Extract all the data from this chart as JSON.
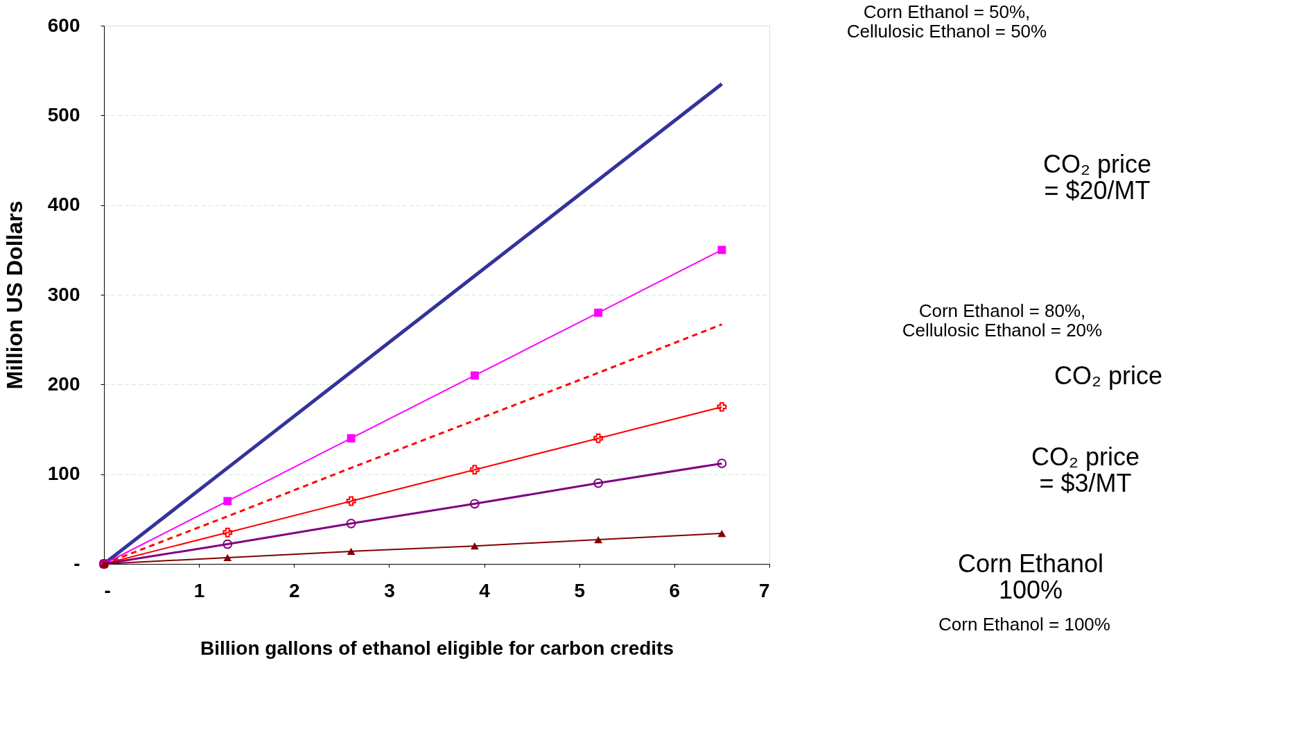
{
  "chart_data": {
    "type": "line",
    "xlabel": "Billion gallons of ethanol eligible for carbon credits",
    "ylabel": "Million US Dollars",
    "x": [
      0,
      1.3,
      2.6,
      3.9,
      5.2,
      6.5
    ],
    "xlim": [
      0,
      7
    ],
    "xticks": [
      {
        "value": 0,
        "label": "-"
      },
      1,
      2,
      3,
      4,
      5,
      6,
      7
    ],
    "ylim": [
      0,
      600
    ],
    "yticks": [
      {
        "value": 0,
        "label": "-"
      },
      100,
      200,
      300,
      400,
      500,
      600
    ],
    "grid": "y",
    "series": [
      {
        "color": "#333399",
        "values": [
          0,
          107,
          214,
          321,
          428,
          535
        ],
        "marker": "none",
        "line_style": "solid"
      },
      {
        "color": "#ff00ff",
        "values": [
          0,
          70,
          140,
          210,
          280,
          350
        ],
        "marker": "square",
        "line_style": "solid"
      },
      {
        "color": "#ff0000",
        "values": [
          0,
          53,
          107,
          160,
          213,
          267
        ],
        "marker": "none",
        "line_style": "dashed"
      },
      {
        "color": "#ff0000",
        "values": [
          0,
          35,
          70,
          105,
          140,
          175
        ],
        "marker": "cross",
        "line_style": "solid"
      },
      {
        "color": "#800080",
        "values": [
          0,
          22,
          45,
          67,
          90,
          112
        ],
        "marker": "circle",
        "line_style": "solid"
      },
      {
        "color": "#800000",
        "values": [
          0,
          7,
          14,
          20,
          27,
          34
        ],
        "marker": "triangle",
        "line_style": "solid"
      }
    ],
    "annotations": [
      "Corn Ethanol = 50%,\nCellulosic Ethanol = 50%",
      "CO₂ price\n= $20/MT",
      "Corn Ethanol = 80%,\nCellulosic Ethanol = 20%",
      "CO₂ price",
      "CO₂ price\n= $3/MT",
      "Corn Ethanol\n100%",
      "Corn Ethanol = 100%"
    ]
  }
}
